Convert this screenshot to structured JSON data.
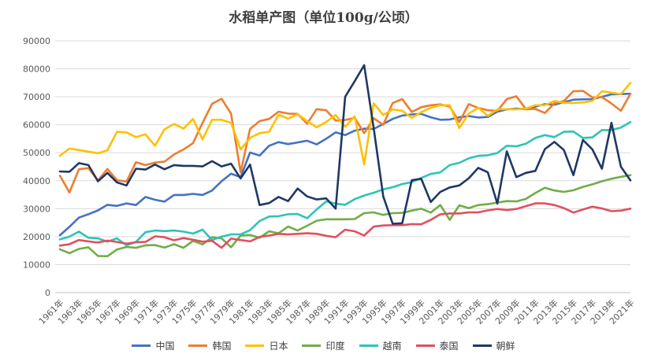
{
  "chart_data": {
    "type": "line",
    "title": "水稻单产图（单位100g/公顷）",
    "xlabel": "",
    "ylabel": "",
    "ylim": [
      0,
      90000
    ],
    "yticks": [
      0,
      10000,
      20000,
      30000,
      40000,
      50000,
      60000,
      70000,
      80000,
      90000
    ],
    "grid": true,
    "legend_position": "bottom",
    "x": [
      1961,
      1962,
      1963,
      1964,
      1965,
      1966,
      1967,
      1968,
      1969,
      1970,
      1971,
      1972,
      1973,
      1974,
      1975,
      1976,
      1977,
      1978,
      1979,
      1980,
      1981,
      1982,
      1983,
      1984,
      1985,
      1986,
      1987,
      1988,
      1989,
      1990,
      1991,
      1992,
      1993,
      1994,
      1995,
      1996,
      1997,
      1998,
      1999,
      2000,
      2001,
      2002,
      2003,
      2004,
      2005,
      2006,
      2007,
      2008,
      2009,
      2010,
      2011,
      2012,
      2013,
      2014,
      2015,
      2016,
      2017,
      2018,
      2019,
      2020,
      2021
    ],
    "x_tick_labels": [
      "1961年",
      "1963年",
      "1965年",
      "1967年",
      "1969年",
      "1971年",
      "1973年",
      "1975年",
      "1977年",
      "1979年",
      "1981年",
      "1983年",
      "1985年",
      "1987年",
      "1989年",
      "1991年",
      "1993年",
      "1995年",
      "1997年",
      "1999年",
      "2001年",
      "2003年",
      "2005年",
      "2007年",
      "2009年",
      "2011年",
      "2013年",
      "2015年",
      "2017年",
      "2019年",
      "2021年"
    ],
    "series": [
      {
        "name": "中国",
        "color": "#4472C4",
        "values": [
          20500,
          23500,
          26800,
          28000,
          29400,
          31400,
          31000,
          31900,
          31300,
          34200,
          33200,
          32500,
          34900,
          34900,
          35300,
          34900,
          36500,
          39800,
          42500,
          41300,
          50100,
          49000,
          52500,
          53800,
          53100,
          53700,
          54300,
          53000,
          55000,
          57300,
          56300,
          57900,
          58600,
          58500,
          60300,
          62100,
          63300,
          63700,
          63900,
          62700,
          61800,
          61900,
          62700,
          63100,
          62600,
          62800,
          64700,
          65500,
          65800,
          65600,
          66500,
          67400,
          67200,
          68100,
          69000,
          69100,
          69200,
          70000,
          70900,
          71000,
          71100
        ]
      },
      {
        "name": "韩国",
        "color": "#ED7D31",
        "values": [
          41800,
          35800,
          44100,
          44500,
          40100,
          44200,
          40200,
          39700,
          46600,
          45600,
          46500,
          46800,
          49400,
          51200,
          53400,
          60700,
          67500,
          69300,
          64000,
          43000,
          58500,
          61300,
          62100,
          64700,
          64000,
          63900,
          60400,
          65600,
          65200,
          61500,
          61700,
          62500,
          57000,
          62300,
          60000,
          67800,
          69200,
          64600,
          66300,
          67000,
          67300,
          66500,
          61000,
          67400,
          66000,
          65200,
          65000,
          69200,
          70200,
          65600,
          65700,
          64200,
          67700,
          68500,
          72000,
          72100,
          69800,
          69900,
          67600,
          65000,
          71100
        ]
      },
      {
        "name": "日本",
        "color": "#FFC000",
        "values": [
          48900,
          51500,
          51000,
          50400,
          49800,
          50900,
          57500,
          57300,
          55600,
          56600,
          52500,
          58400,
          60300,
          58600,
          62100,
          54800,
          61800,
          61800,
          60700,
          51200,
          55300,
          57000,
          57500,
          63600,
          62200,
          63800,
          61300,
          59100,
          61000,
          63500,
          59300,
          63000,
          45800,
          67700,
          63500,
          65500,
          65000,
          62500,
          64500,
          66100,
          67000,
          67000,
          58800,
          64000,
          66100,
          63200,
          65500,
          65600,
          65500,
          65800,
          67000,
          67000,
          68500,
          67900,
          67800,
          68000,
          68500,
          72000,
          71500,
          71000,
          75000
        ]
      },
      {
        "name": "印度",
        "color": "#70AD47",
        "values": [
          15500,
          14100,
          15600,
          16200,
          13100,
          13000,
          15400,
          16300,
          16000,
          16900,
          17000,
          16100,
          17300,
          16000,
          18500,
          17200,
          19800,
          19400,
          16200,
          20400,
          20600,
          19600,
          21900,
          21200,
          23600,
          22200,
          23900,
          25700,
          26200,
          26200,
          26200,
          26300,
          28400,
          28700,
          27800,
          28400,
          28500,
          29300,
          30000,
          28600,
          31300,
          26000,
          31200,
          30200,
          31300,
          31600,
          32200,
          32700,
          32600,
          33500,
          35600,
          37500,
          36500,
          36000,
          36600,
          37800,
          38700,
          39800,
          40700,
          41400,
          42000
        ]
      },
      {
        "name": "越南",
        "color": "#2DC4B8",
        "values": [
          19000,
          20000,
          21800,
          19600,
          19400,
          18200,
          19400,
          16900,
          18100,
          21600,
          22200,
          22000,
          22200,
          21800,
          21100,
          22500,
          18800,
          20000,
          20800,
          20800,
          22300,
          25600,
          27200,
          27300,
          28000,
          28100,
          26600,
          29700,
          32600,
          31800,
          31400,
          33400,
          34700,
          35700,
          36900,
          37700,
          38800,
          39500,
          41000,
          42400,
          43000,
          45600,
          46400,
          48000,
          48900,
          49100,
          49900,
          52500,
          52300,
          53200,
          55300,
          56300,
          55600,
          57500,
          57600,
          55300,
          55500,
          58100,
          58100,
          59000,
          61000
        ]
      },
      {
        "name": "泰国",
        "color": "#E0505E",
        "values": [
          16800,
          17300,
          18800,
          18300,
          17900,
          18600,
          18100,
          17500,
          18000,
          18100,
          20100,
          19800,
          18700,
          19500,
          18900,
          18200,
          18500,
          16000,
          19300,
          18800,
          18300,
          19900,
          20400,
          21000,
          20800,
          21000,
          21200,
          21000,
          20300,
          19800,
          22500,
          21900,
          20400,
          23600,
          24000,
          24100,
          24100,
          24500,
          24400,
          26000,
          28000,
          28300,
          28300,
          28700,
          28700,
          29400,
          29900,
          29500,
          29900,
          30900,
          31900,
          31900,
          31300,
          30200,
          28600,
          29700,
          30700,
          30100,
          29100,
          29300,
          30000
        ]
      },
      {
        "name": "朝鲜",
        "color": "#1F3864",
        "values": [
          43300,
          43200,
          46300,
          45600,
          39800,
          42800,
          39400,
          38300,
          44300,
          44000,
          45800,
          44100,
          45600,
          45300,
          45300,
          45100,
          47000,
          45100,
          46100,
          40800,
          45800,
          31300,
          32000,
          34200,
          32700,
          37200,
          34400,
          33300,
          33700,
          30000,
          70000,
          75600,
          81300,
          58800,
          34400,
          24600,
          24800,
          40200,
          40700,
          32400,
          36000,
          37600,
          38300,
          40900,
          44600,
          43000,
          31800,
          50500,
          41300,
          42800,
          43500,
          51300,
          53900,
          51000,
          42000,
          54600,
          51200,
          44300,
          60700,
          45000,
          40100
        ]
      }
    ]
  }
}
